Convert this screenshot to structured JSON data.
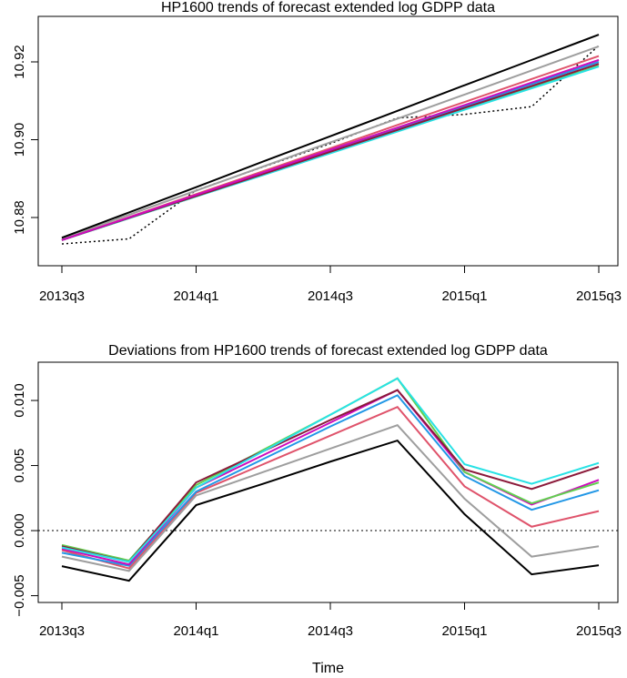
{
  "chart_data": [
    {
      "type": "line",
      "title": "HP1600 trends of forecast extended log GDPP data",
      "categories": [
        "2013q3",
        null,
        "2014q1",
        null,
        "2014q3",
        null,
        "2015q1",
        null,
        "2015q3"
      ],
      "ylim": [
        10.8676,
        10.9317
      ],
      "yticks": [
        10.88,
        {
          "value": 10.9,
          "label": "10.90"
        },
        10.92
      ],
      "series": [
        {
          "color": "#000000",
          "dash": "dotted",
          "values": [
            10.8732,
            10.8745,
            10.887,
            10.893,
            10.899,
            10.9056,
            10.9065,
            10.9085,
            10.9242
          ]
        },
        {
          "color": "#9e9e9e",
          "values": [
            10.8745,
            10.8807,
            10.8869,
            10.8931,
            10.8993,
            10.9054,
            10.9116,
            10.9178,
            10.924
          ]
        },
        {
          "color": "#df536b",
          "values": [
            10.8742,
            10.8801,
            10.886,
            10.8919,
            10.8978,
            10.9038,
            10.9097,
            10.9156,
            10.9215
          ]
        },
        {
          "color": "#2297e6",
          "values": [
            10.8742,
            10.8799,
            10.8857,
            10.8914,
            10.8971,
            10.9028,
            10.9086,
            10.9143,
            10.92
          ]
        },
        {
          "color": "#61d04f",
          "values": [
            10.8742,
            10.8798,
            10.8854,
            10.891,
            10.8966,
            10.9022,
            10.9078,
            10.9134,
            10.919
          ]
        },
        {
          "color": "#28e2e5",
          "values": [
            10.8742,
            10.8798,
            10.8854,
            10.8909,
            10.8965,
            10.9021,
            10.9077,
            10.9132,
            10.9188
          ]
        },
        {
          "color": "#8b1a3a",
          "values": [
            10.8742,
            10.8799,
            10.8855,
            10.8912,
            10.8969,
            10.9025,
            10.9082,
            10.9138,
            10.9195
          ]
        },
        {
          "color": "#cd0bbc",
          "values": [
            10.8742,
            10.88,
            10.8858,
            10.8916,
            10.8974,
            10.9031,
            10.9089,
            10.9147,
            10.9205
          ]
        },
        {
          "color": "#000000",
          "values": [
            10.8748,
            10.8813,
            10.8878,
            10.8944,
            10.9009,
            10.9074,
            10.914,
            10.9205,
            10.927
          ]
        }
      ]
    },
    {
      "type": "line",
      "title": "Deviations from HP1600 trends of forecast extended log GDPP data",
      "xlabel": "Time",
      "categories": [
        "2013q3",
        null,
        "2014q1",
        null,
        "2014q3",
        null,
        "2015q1",
        null,
        "2015q3"
      ],
      "ylim": [
        -0.00552,
        0.01294
      ],
      "yticks": [
        {
          "value": -0.005,
          "label": "−0.005"
        },
        {
          "value": 0,
          "label": "0.000"
        },
        {
          "value": 0.005,
          "label": "0.005"
        },
        {
          "value": 0.01,
          "label": "0.010"
        }
      ],
      "hlines": [
        0
      ],
      "series": [
        {
          "color": "#000000",
          "values": [
            -0.00273,
            -0.00385,
            0.00196,
            0.0036,
            0.0053,
            0.00692,
            0.00126,
            -0.00336,
            -0.00266
          ]
        },
        {
          "color": "#9e9e9e",
          "values": [
            -0.002,
            -0.0031,
            0.0027,
            0.0045,
            0.0063,
            0.0081,
            0.00245,
            -0.002,
            -0.0012
          ]
        },
        {
          "color": "#df536b",
          "values": [
            -0.0015,
            -0.0029,
            0.0029,
            0.0051,
            0.0073,
            0.0095,
            0.0034,
            0.0003,
            0.0015
          ]
        },
        {
          "color": "#2297e6",
          "values": [
            -0.0017,
            -0.0027,
            0.003,
            0.0055,
            0.008,
            0.0104,
            0.0042,
            0.0016,
            0.0031
          ]
        },
        {
          "color": "#cd0bbc",
          "values": [
            -0.0014,
            -0.0026,
            0.0033,
            0.0058,
            0.0083,
            0.0108,
            0.0045,
            0.002,
            0.0039
          ]
        },
        {
          "color": "#61d04f",
          "values": [
            -0.0011,
            -0.0023,
            0.0035,
            0.0062,
            0.0089,
            0.0117,
            0.0045,
            0.0021,
            0.0037
          ]
        },
        {
          "color": "#8b1a3a",
          "values": [
            -0.0012,
            -0.0024,
            0.0037,
            0.0061,
            0.0085,
            0.0108,
            0.0047,
            0.0032,
            0.0049
          ]
        },
        {
          "color": "#28e2e5",
          "values": [
            -0.0013,
            -0.0024,
            0.0033,
            0.0061,
            0.0089,
            0.0117,
            0.0051,
            0.0036,
            0.0052
          ]
        }
      ]
    }
  ]
}
